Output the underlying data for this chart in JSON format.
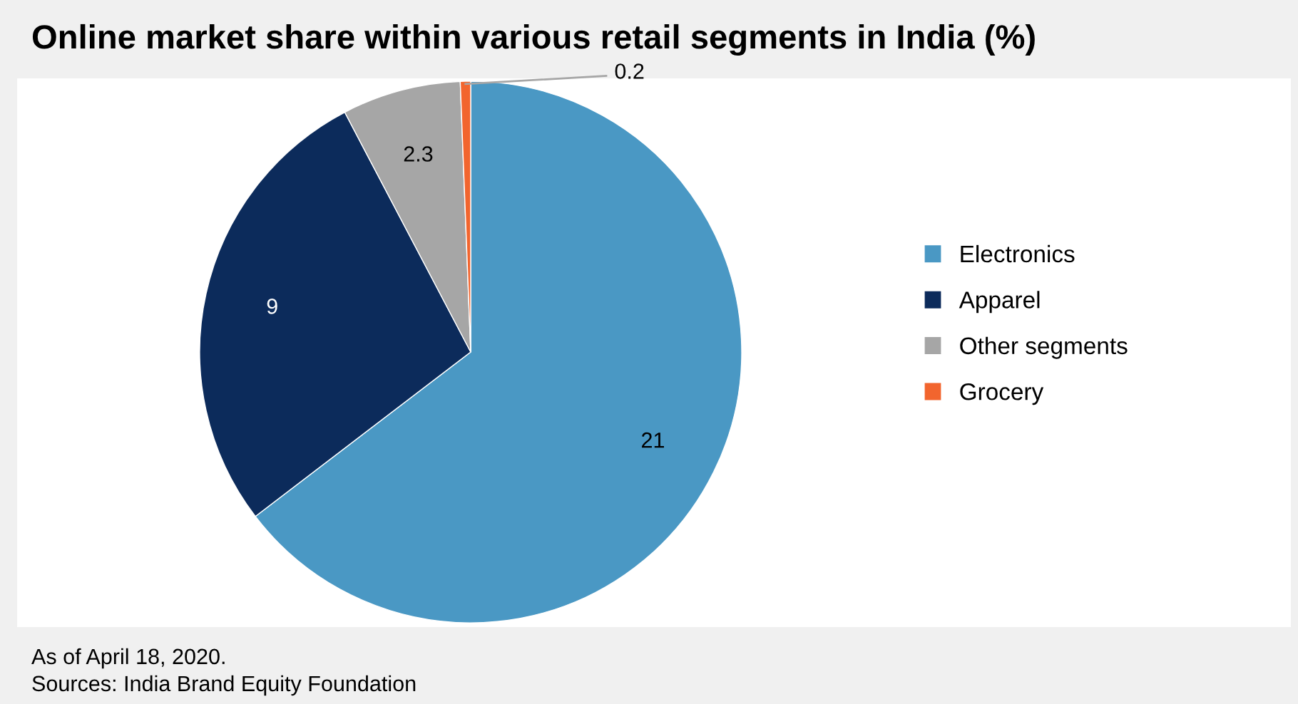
{
  "chart_data": {
    "type": "pie",
    "title": "Online market share within various retail segments in India (%)",
    "categories": [
      "Electronics",
      "Apparel",
      "Other segments",
      "Grocery"
    ],
    "values": [
      21,
      9,
      2.3,
      0.2
    ],
    "colors": [
      "#4a98c4",
      "#0c2b5b",
      "#a6a6a6",
      "#f2652e"
    ],
    "data_labels": true,
    "legend": "right",
    "annotations": [
      "As of April 18, 2020.",
      "Sources: India Brand Equity Foundation"
    ]
  }
}
